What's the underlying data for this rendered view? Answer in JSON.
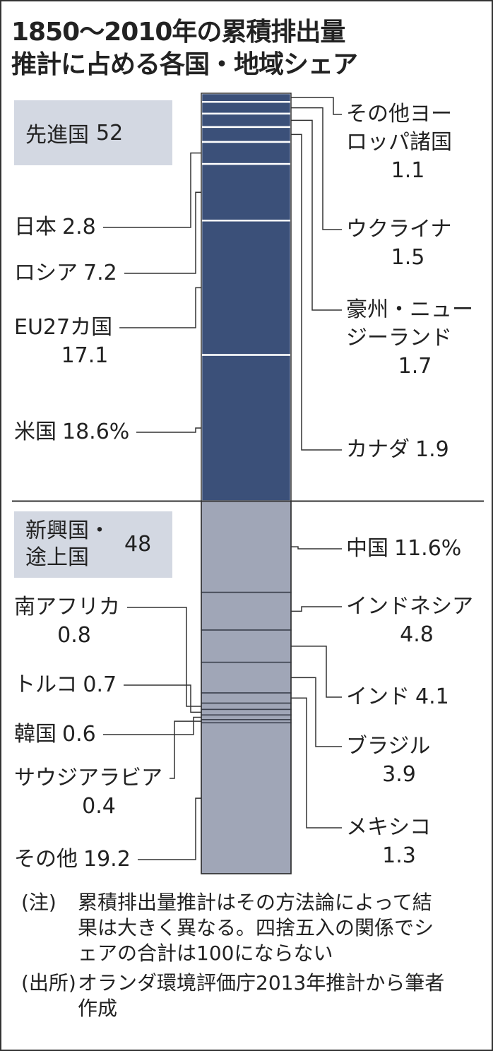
{
  "chart_data": {
    "type": "stacked-column",
    "title": [
      "1850〜2010年の累積排出量",
      "推計に占める各国・地域シェア"
    ],
    "groups": [
      {
        "name": "先進国",
        "value": 52,
        "color": "#3b5079",
        "segments": [
          {
            "name": "その他ヨーロッパ諸国",
            "value": 1.1
          },
          {
            "name": "ウクライナ",
            "value": 1.5
          },
          {
            "name": "豪州・ニュージーランド",
            "value": 1.7
          },
          {
            "name": "カナダ",
            "value": 1.9
          },
          {
            "name": "日本",
            "value": 2.8
          },
          {
            "name": "ロシア",
            "value": 7.2
          },
          {
            "name": "EU27カ国",
            "value": 17.1
          },
          {
            "name": "米国",
            "value": 18.6,
            "value_label": "18.6%"
          }
        ]
      },
      {
        "name": "新興国・途上国",
        "value": 48,
        "color": "#a0a6b7",
        "segments": [
          {
            "name": "中国",
            "value": 11.6,
            "value_label": "11.6%"
          },
          {
            "name": "インドネシア",
            "value": 4.8
          },
          {
            "name": "インド",
            "value": 4.1
          },
          {
            "name": "ブラジル",
            "value": 3.9
          },
          {
            "name": "メキシコ",
            "value": 1.3
          },
          {
            "name": "南アフリカ",
            "value": 0.8
          },
          {
            "name": "トルコ",
            "value": 0.7
          },
          {
            "name": "韓国",
            "value": 0.6
          },
          {
            "name": "サウジアラビア",
            "value": 0.4
          },
          {
            "name": "その他",
            "value": 19.2
          }
        ]
      }
    ],
    "notes": [
      {
        "label": "(注)",
        "text": "累積排出量推計はその方法論によって結果は大きく異なる。四捨五入の関係でシェアの合計は100にならない"
      },
      {
        "label": "(出所)",
        "text": "オランダ環境評価庁2013年推計から筆者作成"
      }
    ]
  }
}
